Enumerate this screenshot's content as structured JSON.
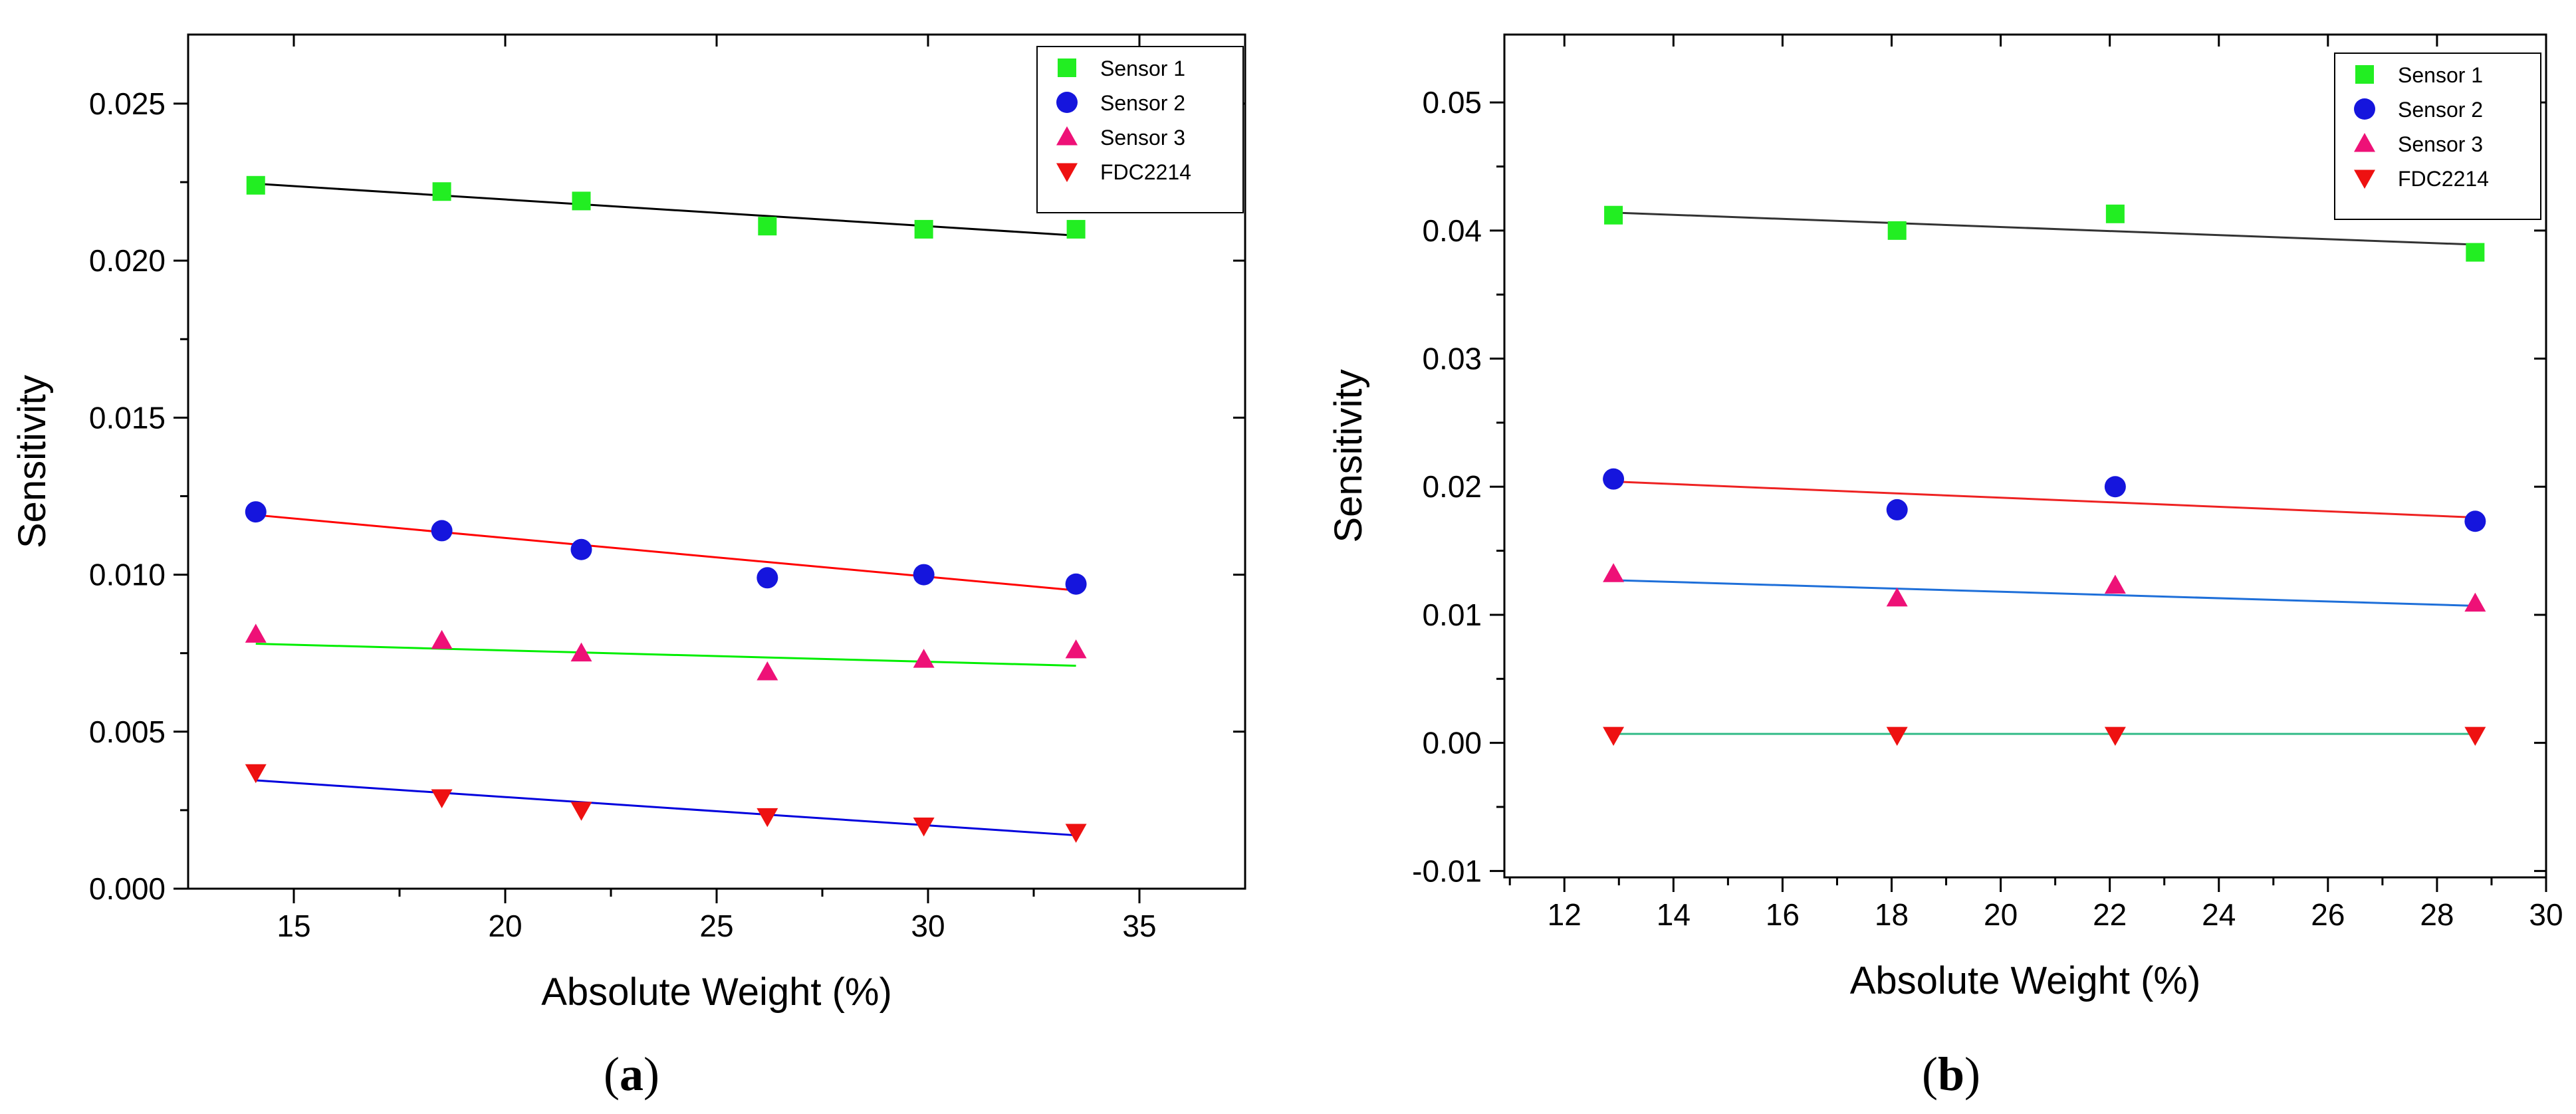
{
  "chart_data": [
    {
      "type": "scatter",
      "panel_label": "a",
      "xlabel": "Absolute Weight (%)",
      "ylabel": "Sensitivity",
      "xlim": [
        12.5,
        37.5
      ],
      "ylim": [
        0,
        0.0272
      ],
      "xticks": [
        15,
        20,
        25,
        30,
        35
      ],
      "xtick_labels": [
        "15",
        "20",
        "25",
        "30",
        "35"
      ],
      "yticks": [
        0,
        0.005,
        0.01,
        0.015,
        0.02,
        0.025
      ],
      "ytick_labels": [
        "0.000",
        "0.005",
        "0.010",
        "0.015",
        "0.020",
        "0.025"
      ],
      "legend_position": "top-right",
      "series": [
        {
          "name": "Sensor 1",
          "marker": "square",
          "color": "#22ee22",
          "x": [
            14.1,
            18.5,
            21.8,
            26.2,
            29.9,
            33.5
          ],
          "y": [
            0.0224,
            0.0222,
            0.0219,
            0.0211,
            0.021,
            0.021
          ],
          "fit": {
            "x": [
              14.1,
              33.5
            ],
            "y": [
              0.02245,
              0.0208
            ],
            "color": "#000000"
          }
        },
        {
          "name": "Sensor 2",
          "marker": "circle",
          "color": "#1515dd",
          "x": [
            14.1,
            18.5,
            21.8,
            26.2,
            29.9,
            33.5
          ],
          "y": [
            0.012,
            0.0114,
            0.0108,
            0.0099,
            0.01,
            0.0097
          ],
          "fit": {
            "x": [
              14.1,
              33.5
            ],
            "y": [
              0.0119,
              0.0095
            ],
            "color": "#ff0000"
          }
        },
        {
          "name": "Sensor 3",
          "marker": "triangle-up",
          "color": "#ee1177",
          "x": [
            14.1,
            18.5,
            21.8,
            26.2,
            29.9,
            33.5
          ],
          "y": [
            0.0081,
            0.0079,
            0.0075,
            0.0069,
            0.0073,
            0.0076
          ],
          "fit": {
            "x": [
              14.1,
              33.5
            ],
            "y": [
              0.0078,
              0.0071
            ],
            "color": "#00ee00"
          }
        },
        {
          "name": "FDC2214",
          "marker": "triangle-down",
          "color": "#ee1111",
          "x": [
            14.1,
            18.5,
            21.8,
            26.2,
            29.9,
            33.5
          ],
          "y": [
            0.0037,
            0.0029,
            0.0025,
            0.0023,
            0.002,
            0.0018
          ],
          "fit": {
            "x": [
              14.1,
              33.5
            ],
            "y": [
              0.00345,
              0.0017
            ],
            "color": "#0000dd"
          }
        }
      ]
    },
    {
      "type": "scatter",
      "panel_label": "b",
      "xlabel": "Absolute Weight (%)",
      "ylabel": "Sensitivity",
      "xlim": [
        10.9,
        30
      ],
      "ylim": [
        -0.0105,
        0.0553
      ],
      "xticks": [
        12,
        14,
        16,
        18,
        20,
        22,
        24,
        26,
        28,
        30
      ],
      "xtick_labels": [
        "12",
        "14",
        "16",
        "18",
        "20",
        "22",
        "24",
        "26",
        "28",
        "30"
      ],
      "yticks": [
        -0.01,
        0,
        0.01,
        0.02,
        0.03,
        0.04,
        0.05
      ],
      "ytick_labels": [
        "-0.01",
        "0.00",
        "0.01",
        "0.02",
        "0.03",
        "0.04",
        "0.05"
      ],
      "legend_position": "top-right",
      "series": [
        {
          "name": "Sensor 1",
          "marker": "square",
          "color": "#22ee22",
          "x": [
            12.9,
            18.1,
            22.1,
            28.7
          ],
          "y": [
            0.0412,
            0.04,
            0.0413,
            0.0383
          ],
          "fit": {
            "x": [
              12.9,
              28.7
            ],
            "y": [
              0.0414,
              0.0389
            ],
            "color": "#333333"
          }
        },
        {
          "name": "Sensor 2",
          "marker": "circle",
          "color": "#1515dd",
          "x": [
            12.9,
            18.1,
            22.1,
            28.7
          ],
          "y": [
            0.0206,
            0.0182,
            0.02,
            0.0173
          ],
          "fit": {
            "x": [
              12.9,
              28.7
            ],
            "y": [
              0.0204,
              0.0176
            ],
            "color": "#ee2222"
          }
        },
        {
          "name": "Sensor 3",
          "marker": "triangle-up",
          "color": "#ee1177",
          "x": [
            12.9,
            18.1,
            22.1,
            28.7
          ],
          "y": [
            0.0132,
            0.0113,
            0.0123,
            0.0109
          ],
          "fit": {
            "x": [
              12.9,
              28.7
            ],
            "y": [
              0.0127,
              0.0107
            ],
            "color": "#1e6fd9"
          }
        },
        {
          "name": "FDC2214",
          "marker": "triangle-down",
          "color": "#ee1111",
          "x": [
            12.9,
            18.1,
            22.1,
            28.7
          ],
          "y": [
            0.0006,
            0.0006,
            0.0006,
            0.0006
          ],
          "fit": {
            "x": [
              12.9,
              28.7
            ],
            "y": [
              0.0007,
              0.0007
            ],
            "color": "#33bb88"
          }
        }
      ]
    }
  ]
}
